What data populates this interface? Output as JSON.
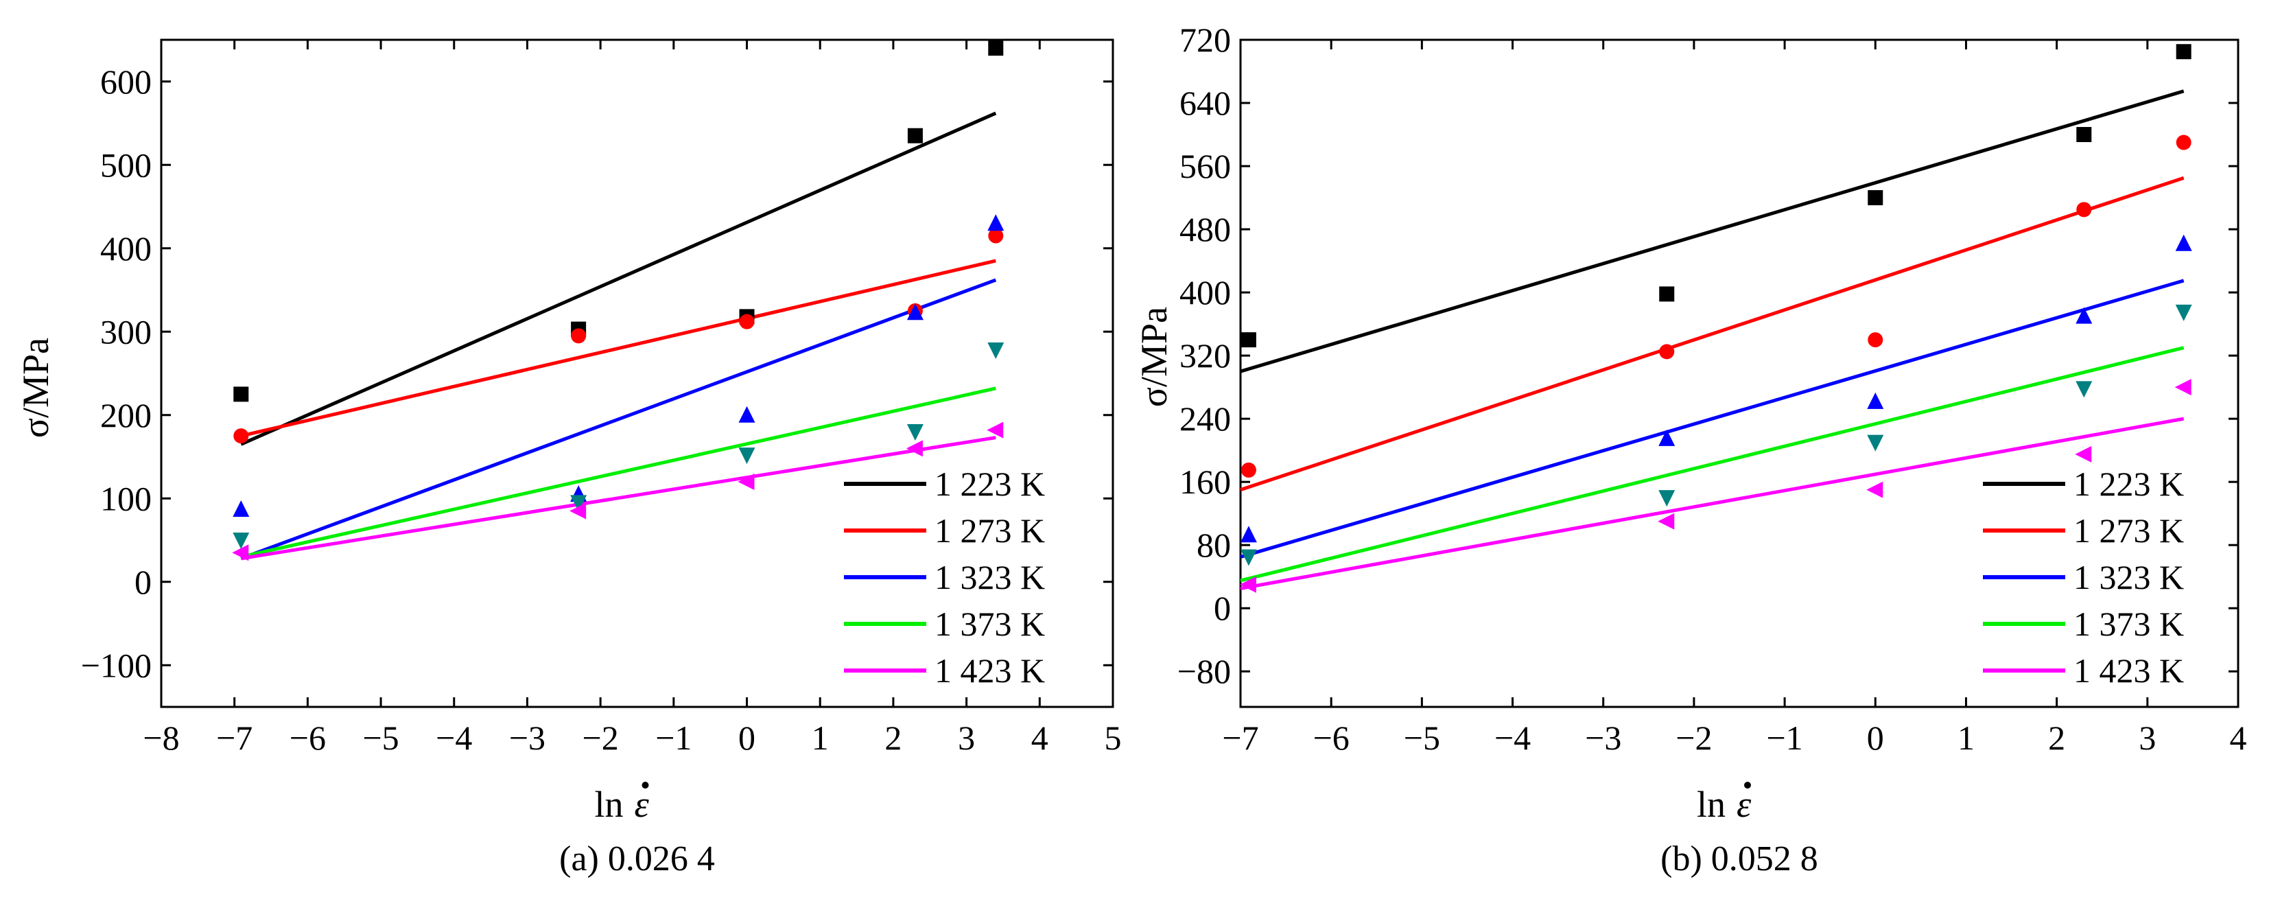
{
  "chart_data": [
    {
      "type": "scatter",
      "caption": "(a) 0.026 4",
      "xlabel": "ln",
      "xlabel_symbol": "ε",
      "ylabel": "σ/MPa",
      "xlim": [
        -8,
        5
      ],
      "ylim": [
        -150,
        650
      ],
      "xticks": [
        -8,
        -7,
        -6,
        -5,
        -4,
        -3,
        -2,
        -1,
        0,
        1,
        2,
        3,
        4,
        5
      ],
      "yticks": [
        -100,
        0,
        100,
        200,
        300,
        400,
        500,
        600
      ],
      "legend_position": "bottom-right",
      "series": [
        {
          "name": "1 223 K",
          "color": "#000000",
          "marker": "square",
          "x": [
            -6.91,
            -2.3,
            0,
            2.3,
            3.4
          ],
          "y": [
            225,
            303,
            318,
            535,
            640
          ],
          "fit": [
            [
              -6.91,
              165
            ],
            [
              3.4,
              562
            ]
          ]
        },
        {
          "name": "1 273 K",
          "color": "#ff0000",
          "marker": "circle",
          "x": [
            -6.91,
            -2.3,
            0,
            2.3,
            3.4
          ],
          "y": [
            175,
            295,
            312,
            325,
            415
          ],
          "fit": [
            [
              -6.91,
              175
            ],
            [
              3.4,
              385
            ]
          ]
        },
        {
          "name": "1 323 K",
          "color": "#0000ff",
          "marker": "triangle-up",
          "x": [
            -6.91,
            -2.3,
            0,
            2.3,
            3.4
          ],
          "y": [
            87,
            105,
            200,
            323,
            430
          ],
          "fit": [
            [
              -6.91,
              28
            ],
            [
              3.4,
              362
            ]
          ]
        },
        {
          "name": "1 373 K",
          "color": "#008080",
          "marker": "triangle-down",
          "x": [
            -6.91,
            -2.3,
            0,
            2.3,
            3.4
          ],
          "y": [
            50,
            95,
            152,
            180,
            278
          ],
          "fit": [
            [
              -6.91,
              30
            ],
            [
              3.4,
              232
            ]
          ]
        },
        {
          "name": "1 423 K",
          "color": "#ff00ff",
          "marker": "triangle-left",
          "x": [
            -6.91,
            -2.3,
            0,
            2.3,
            3.4
          ],
          "y": [
            35,
            85,
            120,
            160,
            182
          ],
          "fit": [
            [
              -6.91,
              28
            ],
            [
              3.4,
              173
            ]
          ]
        }
      ],
      "line_colors": [
        "#000000",
        "#ff0000",
        "#0000ff",
        "#00ee00",
        "#ff00ff"
      ]
    },
    {
      "type": "scatter",
      "caption": "(b) 0.052 8",
      "xlabel": "ln",
      "xlabel_symbol": "ε",
      "ylabel": "σ/MPa",
      "xlim": [
        -7,
        4
      ],
      "ylim": [
        -125,
        720
      ],
      "xticks": [
        -7,
        -6,
        -5,
        -4,
        -3,
        -2,
        -1,
        0,
        1,
        2,
        3,
        4
      ],
      "yticks": [
        -80,
        0,
        80,
        160,
        240,
        320,
        400,
        480,
        560,
        640,
        720
      ],
      "legend_position": "bottom-right",
      "series": [
        {
          "name": "1 223 K",
          "color": "#000000",
          "marker": "square",
          "x": [
            -6.91,
            -2.3,
            0,
            2.3,
            3.4
          ],
          "y": [
            340,
            398,
            520,
            600,
            705
          ],
          "fit": [
            [
              -7,
              300
            ],
            [
              3.4,
              655
            ]
          ]
        },
        {
          "name": "1 273 K",
          "color": "#ff0000",
          "marker": "circle",
          "x": [
            -6.91,
            -2.3,
            0,
            2.3,
            3.4
          ],
          "y": [
            175,
            325,
            340,
            505,
            590
          ],
          "fit": [
            [
              -7,
              150
            ],
            [
              3.4,
              545
            ]
          ]
        },
        {
          "name": "1 323 K",
          "color": "#0000ff",
          "marker": "triangle-up",
          "x": [
            -6.91,
            -2.3,
            0,
            2.3,
            3.4
          ],
          "y": [
            93,
            215,
            262,
            370,
            462
          ],
          "fit": [
            [
              -7,
              65
            ],
            [
              3.4,
              415
            ]
          ]
        },
        {
          "name": "1 373 K",
          "color": "#008080",
          "marker": "triangle-down",
          "x": [
            -6.91,
            -2.3,
            0,
            2.3,
            3.4
          ],
          "y": [
            65,
            140,
            210,
            278,
            375
          ],
          "fit": [
            [
              -7,
              35
            ],
            [
              3.4,
              330
            ]
          ]
        },
        {
          "name": "1 423 K",
          "color": "#ff00ff",
          "marker": "triangle-left",
          "x": [
            -6.91,
            -2.3,
            0,
            2.3,
            3.4
          ],
          "y": [
            30,
            110,
            150,
            195,
            280
          ],
          "fit": [
            [
              -7,
              25
            ],
            [
              3.4,
              240
            ]
          ]
        }
      ],
      "line_colors": [
        "#000000",
        "#ff0000",
        "#0000ff",
        "#00ee00",
        "#ff00ff"
      ]
    }
  ]
}
